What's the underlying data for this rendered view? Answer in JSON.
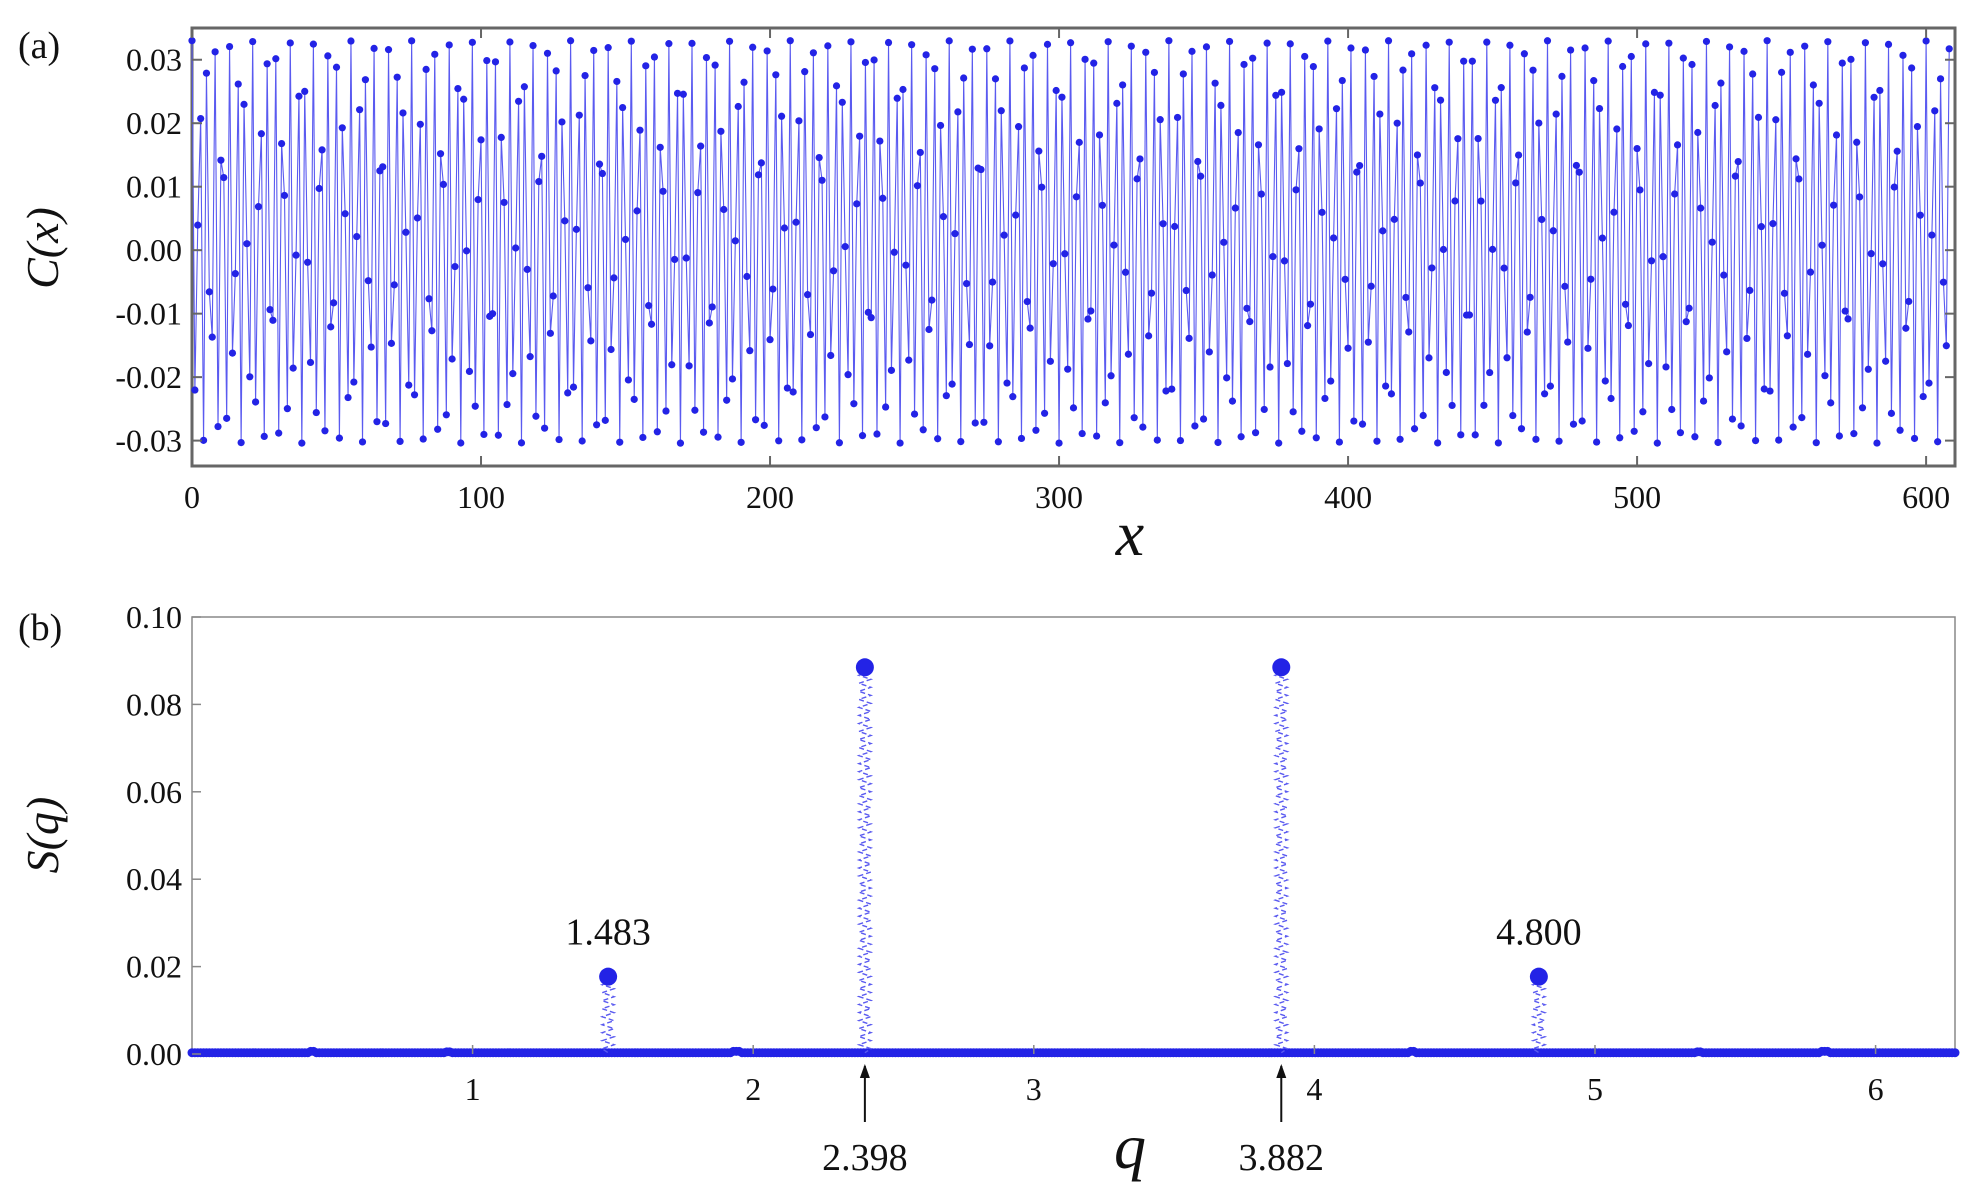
{
  "chart_data": [
    {
      "type": "scatter",
      "panel_label": "(a)",
      "xlabel": "x",
      "ylabel": "C(x)",
      "xlim": [
        0,
        610
      ],
      "ylim": [
        -0.034,
        0.035
      ],
      "x_ticks": [
        "0",
        "100",
        "200",
        "300",
        "400",
        "500",
        "600"
      ],
      "y_ticks": [
        "-0.03",
        "-0.02",
        "-0.01",
        "0.00",
        "0.01",
        "0.02",
        "0.03"
      ],
      "x_tick_values": [
        0,
        100,
        200,
        300,
        400,
        500,
        600
      ],
      "y_tick_values": [
        -0.03,
        -0.02,
        -0.01,
        0.0,
        0.01,
        0.02,
        0.03
      ],
      "series": [
        {
          "style": "points joined by thin line",
          "x_start": 0,
          "x_step": 1,
          "x_end": 608,
          "formula": "C(x) = 0.0317*cos(2.398*x) projected; oscillation between approx -0.030 and 0.033",
          "amplitude": 0.0317,
          "frequency": 2.398,
          "offset": 0.0013
        }
      ],
      "frame": "box",
      "grid": false
    },
    {
      "type": "scatter",
      "panel_label": "(b)",
      "xlabel": "q",
      "ylabel": "S(q)",
      "xlim": [
        0.0,
        6.283
      ],
      "ylim": [
        0.0,
        0.1
      ],
      "x_ticks": [
        "1",
        "2",
        "3",
        "4",
        "5",
        "6"
      ],
      "y_ticks": [
        "0.00",
        "0.02",
        "0.04",
        "0.06",
        "0.08",
        "0.10"
      ],
      "x_tick_values": [
        1,
        2,
        3,
        4,
        5,
        6
      ],
      "y_tick_values": [
        0.0,
        0.02,
        0.04,
        0.06,
        0.08,
        0.1
      ],
      "peaks": [
        {
          "q": 1.483,
          "S": 0.0177,
          "label": "1.483",
          "annotation": "above"
        },
        {
          "q": 2.398,
          "S": 0.0885,
          "label": "2.398",
          "annotation": "arrow-below"
        },
        {
          "q": 3.882,
          "S": 0.0885,
          "label": "3.882",
          "annotation": "arrow-below"
        },
        {
          "q": 4.8,
          "S": 0.0177,
          "label": "4.800",
          "annotation": "above"
        }
      ],
      "small_bumps": [
        {
          "q": 0.43,
          "S": 0.0006
        },
        {
          "q": 0.91,
          "S": 0.0005
        },
        {
          "q": 1.94,
          "S": 0.0006
        },
        {
          "q": 4.35,
          "S": 0.0006
        },
        {
          "q": 5.37,
          "S": 0.0005
        },
        {
          "q": 5.82,
          "S": 0.0006
        }
      ],
      "baseline": 0.0003,
      "frame": "box",
      "grid": false
    }
  ],
  "colors": {
    "series": "#2323e6",
    "line": "#5a5af0",
    "frame": "#666666",
    "text": "#111111"
  }
}
